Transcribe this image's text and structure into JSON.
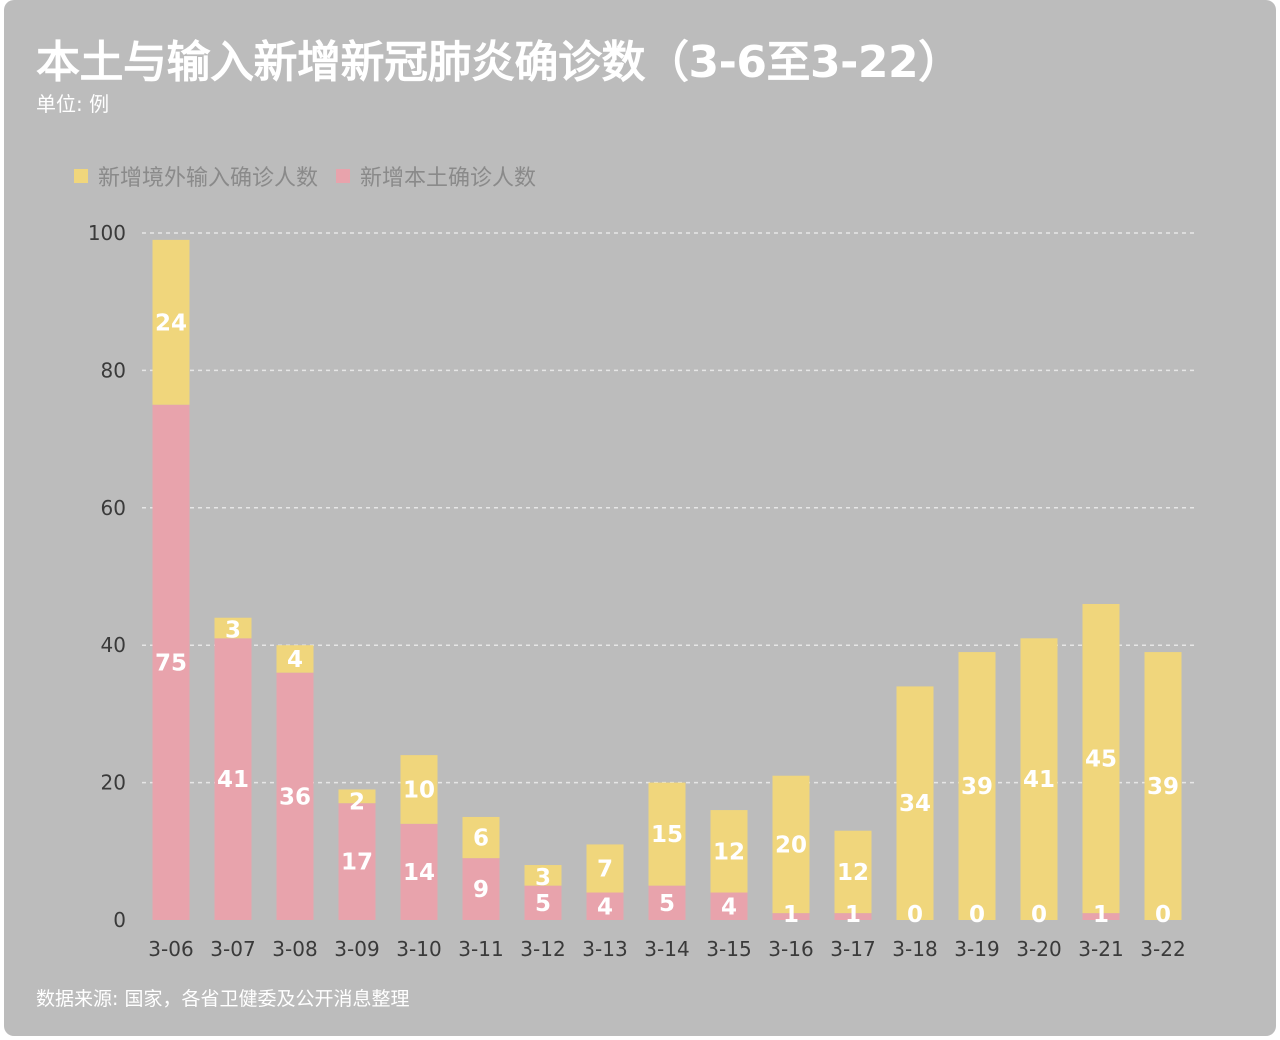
{
  "title": "本土与输入新增新冠肺炎确诊数（3-6至3-22）",
  "unit": "单位: 例",
  "source": "数据来源: 国家，各省卫健委及公开消息整理",
  "legend": [
    {
      "label": "新增境外输入确诊人数",
      "color": "#f0d67c"
    },
    {
      "label": "新增本土确诊人数",
      "color": "#e8a3ac"
    }
  ],
  "colors": {
    "background": "#bcbcbc",
    "imported": "#f0d67c",
    "local": "#e8a3ac"
  },
  "chart_data": {
    "type": "bar",
    "stacked": true,
    "title": "本土与输入新增新冠肺炎确诊数（3-6至3-22）",
    "ylabel": "",
    "xlabel": "",
    "ylim": [
      0,
      100
    ],
    "yticks": [
      0,
      20,
      40,
      60,
      80,
      100
    ],
    "grid": "horizontal dashed",
    "legend_position": "top-left",
    "categories": [
      "3-06",
      "3-07",
      "3-08",
      "3-09",
      "3-10",
      "3-11",
      "3-12",
      "3-13",
      "3-14",
      "3-15",
      "3-16",
      "3-17",
      "3-18",
      "3-19",
      "3-20",
      "3-21",
      "3-22"
    ],
    "series": [
      {
        "name": "新增本土确诊人数",
        "color": "#e8a3ac",
        "values": [
          75,
          41,
          36,
          17,
          14,
          9,
          5,
          4,
          5,
          4,
          1,
          1,
          0,
          0,
          0,
          1,
          0
        ]
      },
      {
        "name": "新增境外输入确诊人数",
        "color": "#f0d67c",
        "values": [
          24,
          3,
          4,
          2,
          10,
          6,
          3,
          7,
          15,
          12,
          20,
          12,
          34,
          39,
          41,
          45,
          39
        ]
      }
    ]
  }
}
